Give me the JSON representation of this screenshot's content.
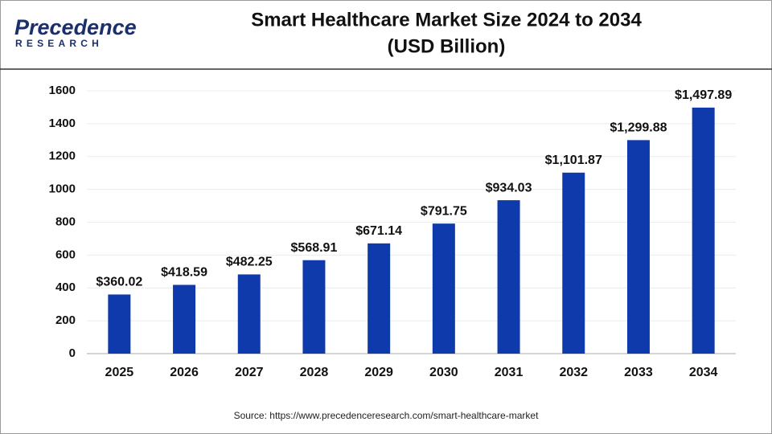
{
  "logo": {
    "name": "Precedence",
    "tagline": "RESEARCH"
  },
  "chart_data": {
    "type": "bar",
    "title": "Smart Healthcare Market Size 2024 to 2034",
    "subtitle": "(USD Billion)",
    "categories": [
      "2025",
      "2026",
      "2027",
      "2028",
      "2029",
      "2030",
      "2031",
      "2032",
      "2033",
      "2034"
    ],
    "values": [
      360.02,
      418.59,
      482.25,
      568.91,
      671.14,
      791.75,
      934.03,
      1101.87,
      1299.88,
      1497.89
    ],
    "value_labels": [
      "$360.02",
      "$418.59",
      "$482.25",
      "$568.91",
      "$671.14",
      "$791.75",
      "$934.03",
      "$1,101.87",
      "$1,299.88",
      "$1,497.89"
    ],
    "color": "#0f3aab",
    "ylim": [
      0,
      1600
    ],
    "yticks": [
      0,
      200,
      400,
      600,
      800,
      1000,
      1200,
      1400,
      1600
    ],
    "grid": true,
    "source": "Source: https://www.precedenceresearch.com/smart-healthcare-market"
  }
}
